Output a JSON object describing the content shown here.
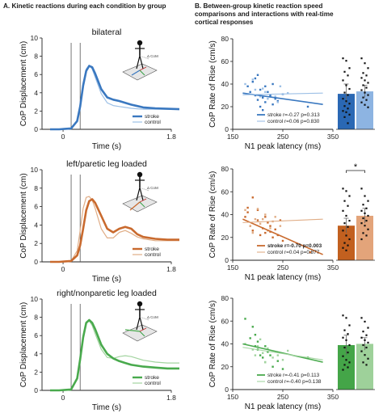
{
  "headers": {
    "A": "A. Kinetic reactions during each condition by group",
    "B_line1": "B. Between-group kinetic reaction speed",
    "B_line2": "comparisons and interactions with real-time",
    "B_line3": "cortical responses"
  },
  "colors": {
    "bilateral": {
      "stroke": "#3a78c0",
      "control": "#9dc0e6",
      "bar_stroke": "#2a68b4",
      "bar_control": "#8db4e2"
    },
    "left": {
      "stroke": "#c96a2e",
      "control": "#e0ad86",
      "bar_stroke": "#c2601f",
      "bar_control": "#e3a47a"
    },
    "right": {
      "stroke": "#49aa4d",
      "control": "#a3d4a0",
      "bar_stroke": "#44a548",
      "bar_control": "#9ed19a"
    }
  },
  "chart_data": [
    {
      "type": "line",
      "panel": "A-bilateral",
      "title": "bilateral",
      "xlabel": "Time (s)",
      "ylabel": "CoP Displacement (cm)",
      "xlim": [
        -0.35,
        1.8
      ],
      "ylim": [
        0,
        10
      ],
      "xticks": [
        "0",
        "1.8"
      ],
      "yticks": [
        "0",
        "2",
        "4",
        "6",
        "8",
        "10"
      ],
      "vlines": [
        0.0,
        0.15
      ],
      "figure_label": "Δ CoM",
      "series": [
        {
          "name": "stroke",
          "x": [
            -0.35,
            -0.2,
            -0.1,
            0.0,
            0.1,
            0.15,
            0.2,
            0.25,
            0.3,
            0.35,
            0.4,
            0.5,
            0.6,
            0.7,
            0.8,
            0.9,
            1.0,
            1.1,
            1.2,
            1.4,
            1.6,
            1.8
          ],
          "y": [
            0,
            0,
            0.05,
            0.1,
            0.9,
            2.5,
            4.8,
            6.4,
            6.95,
            6.8,
            6.1,
            4.4,
            3.5,
            3.25,
            3.1,
            2.9,
            2.7,
            2.55,
            2.4,
            2.3,
            2.25,
            2.2
          ]
        },
        {
          "name": "control",
          "x": [
            -0.35,
            -0.2,
            -0.1,
            0.0,
            0.1,
            0.15,
            0.2,
            0.25,
            0.3,
            0.35,
            0.4,
            0.5,
            0.6,
            0.7,
            0.8,
            0.9,
            1.0,
            1.1,
            1.2,
            1.4,
            1.6,
            1.8
          ],
          "y": [
            0,
            0,
            0.05,
            0.1,
            1.0,
            2.7,
            5.0,
            6.6,
            7.0,
            6.6,
            5.7,
            3.9,
            2.9,
            2.6,
            2.5,
            2.4,
            2.3,
            2.25,
            2.2,
            2.2,
            2.2,
            2.2
          ]
        }
      ]
    },
    {
      "type": "line",
      "panel": "A-left",
      "title": "left/paretic leg loaded",
      "xlabel": "Time (s)",
      "ylabel": "CoP Displacement (cm)",
      "xlim": [
        -0.35,
        1.8
      ],
      "ylim": [
        0,
        10
      ],
      "xticks": [
        "0",
        "1.8"
      ],
      "yticks": [
        "0",
        "2",
        "4",
        "6",
        "8",
        "10"
      ],
      "vlines": [
        0.0,
        0.15
      ],
      "figure_label": "Δ CoM",
      "series": [
        {
          "name": "stroke",
          "x": [
            -0.35,
            -0.2,
            -0.1,
            0.0,
            0.1,
            0.15,
            0.2,
            0.25,
            0.3,
            0.35,
            0.4,
            0.5,
            0.6,
            0.7,
            0.8,
            0.9,
            1.0,
            1.1,
            1.2,
            1.4,
            1.6,
            1.8
          ],
          "y": [
            0,
            0,
            0.05,
            0.1,
            0.7,
            1.8,
            3.6,
            5.6,
            6.6,
            6.8,
            6.4,
            5.0,
            3.6,
            3.2,
            3.6,
            3.8,
            3.6,
            3.0,
            2.7,
            2.5,
            2.4,
            2.4
          ]
        },
        {
          "name": "control",
          "x": [
            -0.35,
            -0.2,
            -0.1,
            0.0,
            0.1,
            0.15,
            0.2,
            0.25,
            0.3,
            0.35,
            0.4,
            0.5,
            0.6,
            0.7,
            0.8,
            0.9,
            1.0,
            1.1,
            1.2,
            1.4,
            1.6,
            1.8
          ],
          "y": [
            0,
            0,
            0.05,
            0.1,
            1.2,
            3.4,
            5.8,
            7.0,
            7.1,
            6.7,
            5.8,
            3.6,
            2.6,
            2.6,
            3.2,
            3.4,
            3.1,
            2.7,
            2.5,
            2.3,
            2.3,
            2.3
          ]
        }
      ]
    },
    {
      "type": "line",
      "panel": "A-right",
      "title": "right/nonparetic leg loaded",
      "xlabel": "Time (s)",
      "ylabel": "CoP Displacement (cm)",
      "xlim": [
        -0.35,
        1.8
      ],
      "ylim": [
        0,
        10
      ],
      "xticks": [
        "0",
        "1.8"
      ],
      "yticks": [
        "0",
        "2",
        "4",
        "6",
        "8",
        "10"
      ],
      "vlines": [
        0.0,
        0.15
      ],
      "figure_label": "Δ CoM",
      "series": [
        {
          "name": "stroke",
          "x": [
            -0.35,
            -0.2,
            -0.1,
            0.0,
            0.1,
            0.15,
            0.2,
            0.25,
            0.3,
            0.35,
            0.4,
            0.5,
            0.6,
            0.7,
            0.8,
            0.9,
            1.0,
            1.1,
            1.2,
            1.4,
            1.6,
            1.8
          ],
          "y": [
            0,
            0,
            0.05,
            0.1,
            1.3,
            3.4,
            5.8,
            7.4,
            7.7,
            7.4,
            6.7,
            5.0,
            4.0,
            3.5,
            3.2,
            3.0,
            2.8,
            2.7,
            2.6,
            2.5,
            2.4,
            2.4
          ]
        },
        {
          "name": "control",
          "x": [
            -0.35,
            -0.2,
            -0.1,
            0.0,
            0.1,
            0.15,
            0.2,
            0.25,
            0.3,
            0.35,
            0.4,
            0.5,
            0.6,
            0.7,
            0.8,
            0.9,
            1.0,
            1.1,
            1.2,
            1.4,
            1.6,
            1.8
          ],
          "y": [
            0,
            0,
            0.05,
            0.1,
            1.4,
            3.6,
            6.0,
            7.5,
            7.6,
            7.1,
            6.2,
            4.5,
            3.6,
            3.5,
            3.7,
            3.8,
            3.7,
            3.5,
            3.3,
            3.1,
            3.0,
            3.0
          ]
        }
      ]
    },
    {
      "type": "scatter",
      "panel": "B-bilateral",
      "xlabel": "N1 peak latency (ms)",
      "ylabel": "CoP Rate of Rise (cm/s)",
      "xlim": [
        150,
        350
      ],
      "ylim": [
        0,
        80
      ],
      "xticks": [
        "150",
        "250",
        "350"
      ],
      "yticks": [
        "0",
        "20",
        "40",
        "60",
        "80"
      ],
      "series": [
        {
          "name": "stroke",
          "stat": "stroke r=-0.27 p=0.313",
          "bold": false,
          "x": [
            180,
            190,
            195,
            200,
            205,
            210,
            215,
            220,
            225,
            230,
            235,
            195,
            205,
            215,
            240,
            250,
            210,
            225,
            200,
            300,
            185,
            230
          ],
          "y": [
            38,
            42,
            30,
            26,
            35,
            28,
            24,
            33,
            30,
            22,
            27,
            45,
            20,
            38,
            25,
            31,
            17,
            29,
            48,
            20,
            33,
            40
          ],
          "fit": [
            [
              170,
              32
            ],
            [
              330,
              22
            ]
          ]
        },
        {
          "name": "control",
          "stat": "control r=0.06 p=0.830",
          "bold": false,
          "x": [
            175,
            195,
            205,
            215,
            235,
            245,
            260,
            220,
            210,
            240,
            250,
            190
          ],
          "y": [
            40,
            35,
            29,
            33,
            29,
            38,
            32,
            27,
            36,
            24,
            31,
            44
          ],
          "fit": [
            [
              170,
              30.5
            ],
            [
              330,
              32
            ]
          ]
        }
      ],
      "bars": [
        {
          "group": "stroke",
          "value": 29,
          "err": 8
        },
        {
          "group": "control",
          "value": 31,
          "err": 5
        }
      ],
      "bar_points": {
        "stroke": [
          58,
          56,
          50,
          47,
          44,
          40,
          36,
          33,
          30,
          28,
          25,
          23,
          21,
          19,
          17,
          15,
          14,
          12,
          10,
          5
        ],
        "control": [
          58,
          54,
          50,
          46,
          44,
          42,
          40,
          38,
          36,
          34,
          32,
          30,
          28,
          26,
          24,
          22,
          20,
          18
        ]
      }
    },
    {
      "type": "scatter",
      "panel": "B-left",
      "xlabel": "N1 peak latency (ms)",
      "ylabel": "CoP Rate of Rise (cm/s)",
      "xlim": [
        150,
        350
      ],
      "ylim": [
        0,
        80
      ],
      "xticks": [
        "150",
        "250",
        "350"
      ],
      "yticks": [
        "0",
        "20",
        "40",
        "60",
        "80"
      ],
      "significance": "*",
      "series": [
        {
          "name": "stroke",
          "stat": "stroke r=-0.70 p=0.003",
          "bold": true,
          "x": [
            175,
            180,
            185,
            190,
            200,
            205,
            210,
            215,
            220,
            225,
            230,
            235,
            240,
            245,
            190,
            200,
            215,
            225,
            250,
            305,
            180
          ],
          "y": [
            38,
            42,
            30,
            26,
            35,
            22,
            28,
            24,
            33,
            30,
            20,
            27,
            22,
            35,
            55,
            44,
            38,
            25,
            17,
            7,
            46
          ],
          "fit": [
            [
              170,
              36
            ],
            [
              330,
              5
            ]
          ]
        },
        {
          "name": "control",
          "stat": "control r=0.04 p=0.877",
          "bold": false,
          "x": [
            175,
            185,
            195,
            205,
            215,
            225,
            235,
            245,
            200,
            220,
            210,
            190,
            230
          ],
          "y": [
            44,
            30,
            36,
            32,
            40,
            28,
            38,
            30,
            45,
            26,
            36,
            24,
            34
          ],
          "fit": [
            [
              170,
              33
            ],
            [
              330,
              36
            ]
          ]
        }
      ],
      "bars": [
        {
          "group": "stroke",
          "value": 28,
          "err": 6
        },
        {
          "group": "control",
          "value": 36,
          "err": 6
        }
      ],
      "bar_points": {
        "stroke": [
          58,
          56,
          52,
          48,
          44,
          40,
          36,
          32,
          30,
          27,
          24,
          20,
          17,
          14,
          12,
          10,
          8
        ],
        "control": [
          58,
          52,
          48,
          45,
          42,
          40,
          38,
          36,
          34,
          32,
          30,
          28,
          25,
          22,
          20,
          17
        ]
      }
    },
    {
      "type": "scatter",
      "panel": "B-right",
      "xlabel": "N1 peak latency (ms)",
      "ylabel": "CoP Rate of Rise (cm/s)",
      "xlim": [
        150,
        350
      ],
      "ylim": [
        0,
        80
      ],
      "xticks": [
        "150",
        "250",
        "350"
      ],
      "yticks": [
        "0",
        "20",
        "40",
        "60",
        "80"
      ],
      "series": [
        {
          "name": "stroke",
          "stat": "stroke r=-0.41 p=0.113",
          "bold": false,
          "x": [
            175,
            185,
            195,
            200,
            205,
            210,
            215,
            220,
            225,
            230,
            240,
            190,
            200,
            215,
            250,
            300,
            195
          ],
          "y": [
            62,
            45,
            38,
            35,
            30,
            28,
            24,
            33,
            30,
            20,
            25,
            55,
            42,
            38,
            18,
            28,
            48
          ],
          "fit": [
            [
              170,
              40
            ],
            [
              330,
              24
            ]
          ]
        },
        {
          "name": "control",
          "stat": "control r=-0.40 p=0.138",
          "bold": false,
          "x": [
            175,
            190,
            200,
            210,
            220,
            230,
            240,
            250,
            205,
            215,
            195,
            260
          ],
          "y": [
            40,
            35,
            38,
            32,
            36,
            28,
            30,
            26,
            44,
            24,
            30,
            34
          ],
          "fit": [
            [
              170,
              37
            ],
            [
              330,
              26
            ]
          ]
        }
      ],
      "bars": [
        {
          "group": "stroke",
          "value": 36,
          "err": 8
        },
        {
          "group": "control",
          "value": 37,
          "err": 5
        }
      ],
      "bar_points": {
        "stroke": [
          60,
          58,
          52,
          48,
          45,
          42,
          40,
          36,
          34,
          30,
          27,
          24,
          22,
          20,
          18,
          16
        ],
        "control": [
          58,
          55,
          50,
          47,
          44,
          42,
          40,
          38,
          36,
          34,
          31,
          28,
          25,
          22,
          20
        ]
      }
    }
  ]
}
